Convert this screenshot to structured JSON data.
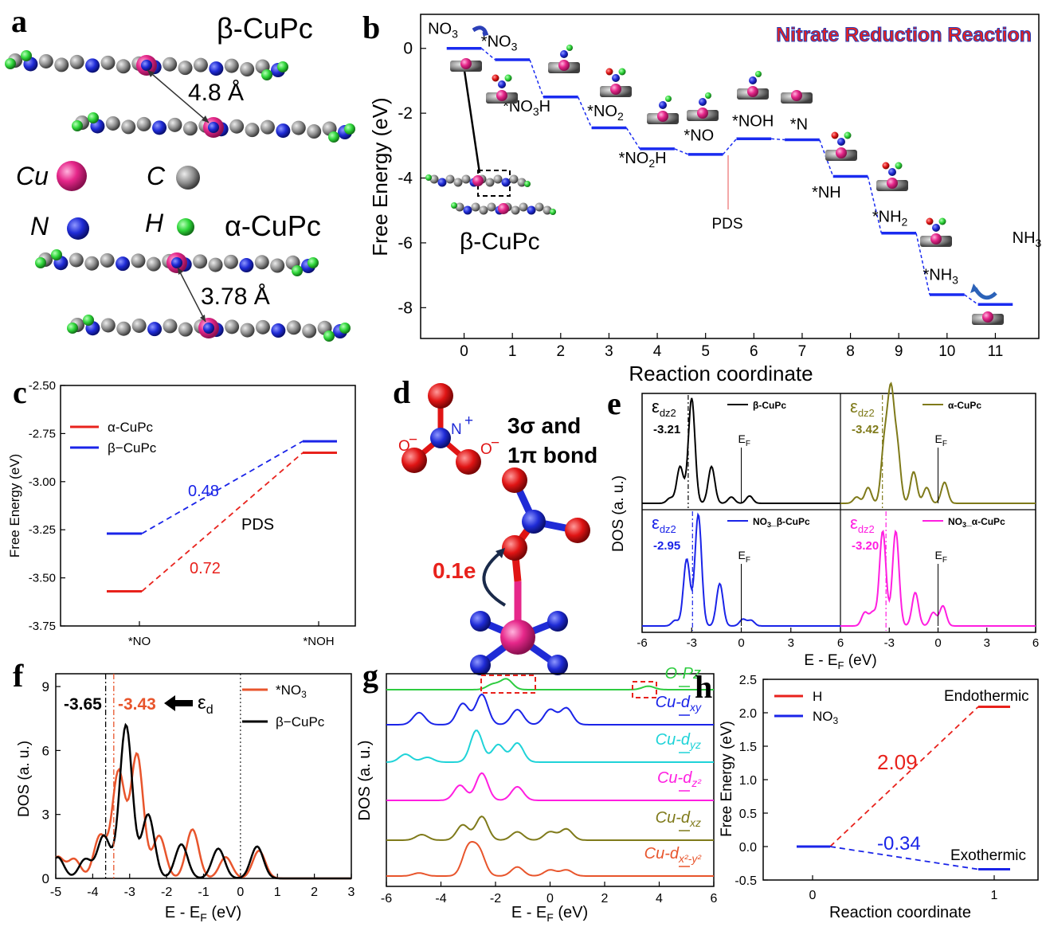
{
  "panel_letters": {
    "a": "a",
    "b": "b",
    "c": "c",
    "d": "d",
    "e": "e",
    "f": "f",
    "g": "g",
    "h": "h"
  },
  "panel_a": {
    "beta_label": "β-CuPc",
    "alpha_label": "α-CuPc",
    "beta_distance": "4.8 Å",
    "alpha_distance": "3.78 Å",
    "legend": [
      {
        "symbol": "Cu",
        "color": "#e6278a"
      },
      {
        "symbol": "C",
        "color": "#8c8c8c"
      },
      {
        "symbol": "N",
        "color": "#1f2bd6"
      },
      {
        "symbol": "H",
        "color": "#2fd63a"
      }
    ]
  },
  "panel_d": {
    "bond_text_1": "3σ and",
    "bond_text_2": "1π bond",
    "charge_transfer": "0.1e",
    "n_label": "N",
    "n_charge": "+",
    "o_label_left": "O",
    "o_label_right": "O",
    "o_charge": "−"
  },
  "chart_data": [
    {
      "panel": "b",
      "type": "line",
      "title": "Nitrate Reduction Reaction",
      "xlabel": "Reaction coordinate",
      "ylabel": "Free Energy (eV)",
      "xlim": [
        -0.9,
        11.9
      ],
      "ylim": [
        -8.95,
        1.05
      ],
      "xticks": [
        "0",
        "1",
        "2",
        "3",
        "4",
        "5",
        "6",
        "7",
        "8",
        "9",
        "10",
        "11"
      ],
      "yticks": [
        "0",
        "-2",
        "-4",
        "-6",
        "-8"
      ],
      "steps": [
        {
          "x": 0,
          "y": 0.0,
          "label": "NO3"
        },
        {
          "x": 1,
          "y": -0.35,
          "label": "*NO3"
        },
        {
          "x": 2,
          "y": -1.5,
          "label": "*NO3H"
        },
        {
          "x": 3,
          "y": -2.45,
          "label": "*NO2"
        },
        {
          "x": 4,
          "y": -3.1,
          "label": "*NO2H"
        },
        {
          "x": 5,
          "y": -3.27,
          "label": "*NO"
        },
        {
          "x": 6,
          "y": -2.79,
          "label": "*NOH"
        },
        {
          "x": 7,
          "y": -2.82,
          "label": "*N"
        },
        {
          "x": 8,
          "y": -3.95,
          "label": "*NH"
        },
        {
          "x": 9,
          "y": -5.7,
          "label": "*NH2"
        },
        {
          "x": 10,
          "y": -7.6,
          "label": "*NH3"
        },
        {
          "x": 11,
          "y": -7.9,
          "label": "NH3"
        }
      ],
      "annotations": [
        "PDS",
        "β-CuPc"
      ],
      "color": "#1a2bf0"
    },
    {
      "panel": "c",
      "type": "line",
      "xlabel": "",
      "ylabel": "Free Energy (eV)",
      "categories": [
        "*NO",
        "*NOH"
      ],
      "ylim": [
        -3.75,
        -2.5
      ],
      "yticks": [
        "-2.50",
        "-2.75",
        "-3.00",
        "-3.25",
        "-3.50",
        "-3.75"
      ],
      "series": [
        {
          "name": "α-CuPc",
          "color": "#e8221c",
          "values": [
            -3.57,
            -2.85
          ]
        },
        {
          "name": "β−CuPc",
          "color": "#1a24e8",
          "values": [
            -3.27,
            -2.79
          ]
        }
      ],
      "annotations": {
        "beta_gap": "0.48",
        "alpha_gap": "0.72",
        "pds": "PDS"
      }
    },
    {
      "panel": "e",
      "type": "line",
      "xlabel": "E - E",
      "xlabel_sub": "F",
      "xlabel_unit": " (eV)",
      "ylabel": "DOS (a. u.)",
      "xlim": [
        -6,
        6
      ],
      "xticks": [
        "-6",
        "-3",
        "0",
        "3",
        "6"
      ],
      "fermi_label": "E",
      "fermi_sub": "F",
      "subplots": [
        {
          "name": "β-CuPc",
          "color": "#000000",
          "eps_label": "ε",
          "eps_sub": "dz2",
          "eps_value": "-3.21",
          "peaks": [
            [
              -4.3,
              0.05
            ],
            [
              -3.7,
              0.35
            ],
            [
              -3.0,
              1.0
            ],
            [
              -1.8,
              0.35
            ],
            [
              -0.6,
              0.06
            ],
            [
              0.5,
              0.07
            ]
          ]
        },
        {
          "name": "α-CuPc",
          "color": "#7f7a1a",
          "eps_label": "ε",
          "eps_sub": "dz2",
          "eps_value": "-3.42",
          "peaks": [
            [
              -5.0,
              0.06
            ],
            [
              -4.3,
              0.15
            ],
            [
              -3.3,
              0.55
            ],
            [
              -2.9,
              1.0
            ],
            [
              -2.5,
              0.5
            ],
            [
              -1.5,
              0.3
            ],
            [
              -0.7,
              0.15
            ],
            [
              0.4,
              0.2
            ]
          ]
        },
        {
          "name": "NO",
          "name_sub": "3",
          "name_rest": "_β-CuPc",
          "color": "#1a24e8",
          "eps_label": "ε",
          "eps_sub": "dz2",
          "eps_value": "-2.95",
          "peaks": [
            [
              -4.0,
              0.05
            ],
            [
              -3.3,
              0.6
            ],
            [
              -2.6,
              1.0
            ],
            [
              -1.3,
              0.38
            ],
            [
              0.1,
              0.06
            ],
            [
              0.6,
              0.05
            ]
          ]
        },
        {
          "name": "NO",
          "name_sub": "3",
          "name_rest": "_α-CuPc",
          "color": "#ff1ee0",
          "eps_label": "ε",
          "eps_sub": "dz2",
          "eps_value": "-3.20",
          "peaks": [
            [
              -4.5,
              0.12
            ],
            [
              -4.0,
              0.12
            ],
            [
              -3.4,
              0.85
            ],
            [
              -2.6,
              0.85
            ],
            [
              -1.4,
              0.3
            ],
            [
              -0.3,
              0.12
            ],
            [
              0.3,
              0.18
            ]
          ]
        }
      ]
    },
    {
      "panel": "f",
      "type": "line",
      "xlabel": "E - E",
      "xlabel_sub": "F",
      "xlabel_unit": " (eV)",
      "ylabel": "DOS (a. u.)",
      "xlim": [
        -5,
        3
      ],
      "ylim": [
        0,
        9.6
      ],
      "xticks": [
        "-5",
        "-4",
        "-3",
        "-2",
        "-1",
        "0",
        "1",
        "2",
        "3"
      ],
      "yticks": [
        "0",
        "3",
        "6",
        "9"
      ],
      "series": [
        {
          "name": "*NO",
          "name_sub": "3",
          "color": "#e8552c",
          "peaks": [
            [
              -4.95,
              1.0
            ],
            [
              -4.5,
              0.9
            ],
            [
              -3.8,
              2.0
            ],
            [
              -3.3,
              5.0
            ],
            [
              -2.8,
              5.8
            ],
            [
              -2.2,
              2.0
            ],
            [
              -1.3,
              2.3
            ],
            [
              -0.4,
              1.0
            ],
            [
              0.5,
              1.3
            ]
          ]
        },
        {
          "name": "β−CuPc",
          "color": "#000000",
          "peaks": [
            [
              -4.95,
              1.0
            ],
            [
              -4.2,
              0.9
            ],
            [
              -3.7,
              2.0
            ],
            [
              -3.1,
              7.2
            ],
            [
              -2.5,
              3.0
            ],
            [
              -1.6,
              1.6
            ],
            [
              -0.6,
              1.4
            ],
            [
              0.45,
              1.5
            ]
          ]
        }
      ],
      "eps_values": {
        "black": "-3.65",
        "red": "-3.43"
      },
      "eps_label": "ε",
      "eps_sub": "d"
    },
    {
      "panel": "g",
      "type": "line",
      "xlabel": "E - E",
      "xlabel_sub": "F",
      "xlabel_unit": " (eV)",
      "ylabel": "DOS (a. u.)",
      "xlim": [
        -6,
        6
      ],
      "xticks": [
        "-6",
        "-4",
        "-2",
        "0",
        "2",
        "4",
        "6"
      ],
      "series": [
        {
          "name": "O-Pz",
          "color": "#2ecc40"
        },
        {
          "name": "Cu-d",
          "sub": "xy",
          "color": "#1a24e8"
        },
        {
          "name": "Cu-d",
          "sub": "yz",
          "color": "#1fd3d8"
        },
        {
          "name": "Cu-d",
          "sub": "z²",
          "color": "#ff1ee0"
        },
        {
          "name": "Cu-d",
          "sub": "xz",
          "color": "#7f7a1a"
        },
        {
          "name": "Cu-d",
          "sub": "x²-y²",
          "color": "#e8552c"
        }
      ]
    },
    {
      "panel": "h",
      "type": "line",
      "xlabel": "Reaction coordinate",
      "ylabel": "Free Energy (eV)",
      "xticks": [
        "0",
        "1"
      ],
      "ylim": [
        -0.5,
        2.5
      ],
      "yticks": [
        "2.5",
        "2.0",
        "1.5",
        "1.0",
        "0.5",
        "0.0",
        "-0.5"
      ],
      "series": [
        {
          "name": "H",
          "color": "#e8221c",
          "values": [
            0,
            2.09
          ]
        },
        {
          "name": "NO",
          "name_sub": "3",
          "color": "#1a24e8",
          "values": [
            0,
            -0.34
          ]
        }
      ],
      "annotations": {
        "h_value": "2.09",
        "no3_value": "-0.34",
        "endo": "Endothermic",
        "exo": "Exothermic"
      }
    }
  ]
}
